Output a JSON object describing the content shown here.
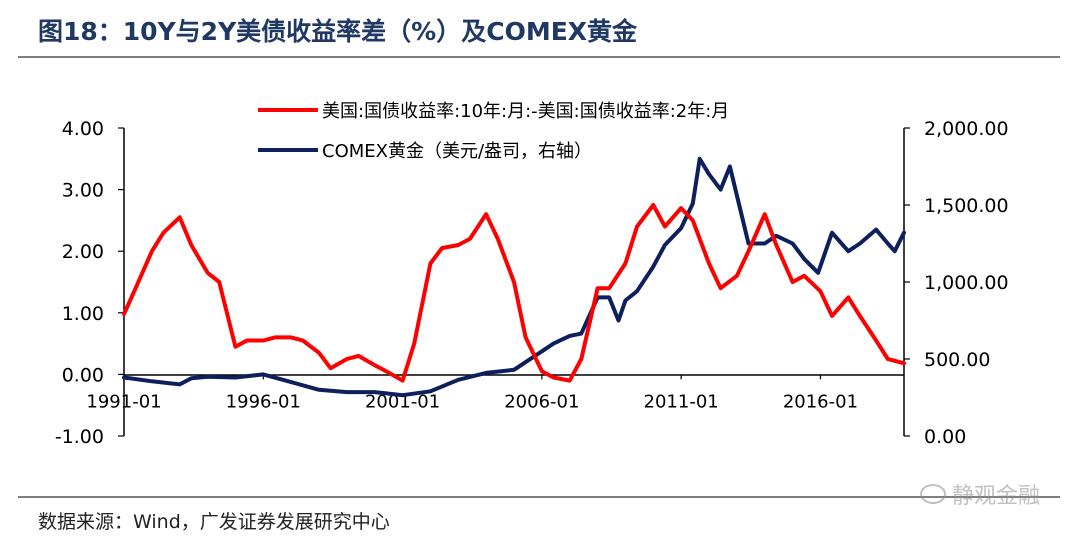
{
  "title": "图18：10Y与2Y美债收益率差（%）及COMEX黄金",
  "source": "数据来源：Wind，广发证券发展研究中心",
  "watermark": "静观金融",
  "colors": {
    "spread": "#ff0000",
    "gold": "#0d1f5c",
    "title": "#1f3864"
  },
  "chart_data": {
    "type": "line",
    "x_ticks": [
      "1991-01",
      "1996-01",
      "2001-01",
      "2006-01",
      "2011-01",
      "2016-01"
    ],
    "xlim": [
      "1991-01",
      "2019-01"
    ],
    "y_left": {
      "ticks": [
        "4.00",
        "3.00",
        "2.00",
        "1.00",
        "0.00",
        "-1.00"
      ],
      "ylim": [
        -1,
        4
      ]
    },
    "y_right": {
      "ticks": [
        "2,000.00",
        "1,500.00",
        "1,000.00",
        "500.00",
        "0.00"
      ],
      "ylim": [
        0,
        2000
      ]
    },
    "legend_position": "top",
    "series": [
      {
        "name": "美国:国债收益率:10年:月:-美国:国债收益率:2年:月",
        "axis": "left",
        "points": [
          [
            "1991-01",
            0.98
          ],
          [
            "1991-06",
            1.4
          ],
          [
            "1992-01",
            2.0
          ],
          [
            "1992-06",
            2.3
          ],
          [
            "1993-01",
            2.55
          ],
          [
            "1993-06",
            2.1
          ],
          [
            "1994-01",
            1.65
          ],
          [
            "1994-06",
            1.5
          ],
          [
            "1995-01",
            0.45
          ],
          [
            "1995-06",
            0.55
          ],
          [
            "1996-01",
            0.55
          ],
          [
            "1996-06",
            0.6
          ],
          [
            "1997-01",
            0.6
          ],
          [
            "1997-06",
            0.55
          ],
          [
            "1998-01",
            0.35
          ],
          [
            "1998-06",
            0.1
          ],
          [
            "1999-01",
            0.25
          ],
          [
            "1999-06",
            0.3
          ],
          [
            "2000-01",
            0.15
          ],
          [
            "2000-06",
            0.05
          ],
          [
            "2001-01",
            -0.1
          ],
          [
            "2001-06",
            0.5
          ],
          [
            "2002-01",
            1.8
          ],
          [
            "2002-06",
            2.05
          ],
          [
            "2003-01",
            2.1
          ],
          [
            "2003-06",
            2.2
          ],
          [
            "2004-01",
            2.6
          ],
          [
            "2004-06",
            2.2
          ],
          [
            "2005-01",
            1.5
          ],
          [
            "2005-06",
            0.6
          ],
          [
            "2006-01",
            0.05
          ],
          [
            "2006-06",
            -0.05
          ],
          [
            "2007-01",
            -0.1
          ],
          [
            "2007-06",
            0.25
          ],
          [
            "2008-01",
            1.4
          ],
          [
            "2008-06",
            1.4
          ],
          [
            "2009-01",
            1.8
          ],
          [
            "2009-06",
            2.4
          ],
          [
            "2010-01",
            2.75
          ],
          [
            "2010-06",
            2.4
          ],
          [
            "2011-01",
            2.7
          ],
          [
            "2011-06",
            2.5
          ],
          [
            "2012-01",
            1.8
          ],
          [
            "2012-06",
            1.4
          ],
          [
            "2013-01",
            1.6
          ],
          [
            "2013-06",
            2.0
          ],
          [
            "2014-01",
            2.6
          ],
          [
            "2014-06",
            2.1
          ],
          [
            "2015-01",
            1.5
          ],
          [
            "2015-06",
            1.6
          ],
          [
            "2016-01",
            1.35
          ],
          [
            "2016-06",
            0.95
          ],
          [
            "2017-01",
            1.25
          ],
          [
            "2017-06",
            0.95
          ],
          [
            "2018-01",
            0.55
          ],
          [
            "2018-06",
            0.25
          ],
          [
            "2019-01",
            0.18
          ]
        ]
      },
      {
        "name": "COMEX黄金（美元/盎司，右轴）",
        "axis": "right",
        "points": [
          [
            "1991-01",
            380
          ],
          [
            "1992-01",
            355
          ],
          [
            "1993-01",
            335
          ],
          [
            "1993-06",
            375
          ],
          [
            "1994-01",
            385
          ],
          [
            "1995-01",
            380
          ],
          [
            "1996-01",
            400
          ],
          [
            "1997-01",
            350
          ],
          [
            "1998-01",
            300
          ],
          [
            "1999-01",
            285
          ],
          [
            "2000-01",
            285
          ],
          [
            "2001-01",
            265
          ],
          [
            "2002-01",
            290
          ],
          [
            "2003-01",
            365
          ],
          [
            "2004-01",
            410
          ],
          [
            "2005-01",
            430
          ],
          [
            "2006-01",
            550
          ],
          [
            "2006-06",
            600
          ],
          [
            "2007-01",
            650
          ],
          [
            "2007-06",
            665
          ],
          [
            "2008-01",
            900
          ],
          [
            "2008-06",
            900
          ],
          [
            "2008-10",
            750
          ],
          [
            "2009-01",
            880
          ],
          [
            "2009-06",
            940
          ],
          [
            "2010-01",
            1100
          ],
          [
            "2010-06",
            1240
          ],
          [
            "2011-01",
            1350
          ],
          [
            "2011-06",
            1510
          ],
          [
            "2011-09",
            1800
          ],
          [
            "2012-01",
            1700
          ],
          [
            "2012-06",
            1600
          ],
          [
            "2012-10",
            1750
          ],
          [
            "2013-06",
            1250
          ],
          [
            "2014-01",
            1250
          ],
          [
            "2014-06",
            1300
          ],
          [
            "2015-01",
            1250
          ],
          [
            "2015-06",
            1150
          ],
          [
            "2015-12",
            1060
          ],
          [
            "2016-06",
            1320
          ],
          [
            "2017-01",
            1200
          ],
          [
            "2017-06",
            1250
          ],
          [
            "2018-01",
            1340
          ],
          [
            "2018-06",
            1250
          ],
          [
            "2018-09",
            1200
          ],
          [
            "2019-01",
            1320
          ]
        ]
      }
    ]
  }
}
